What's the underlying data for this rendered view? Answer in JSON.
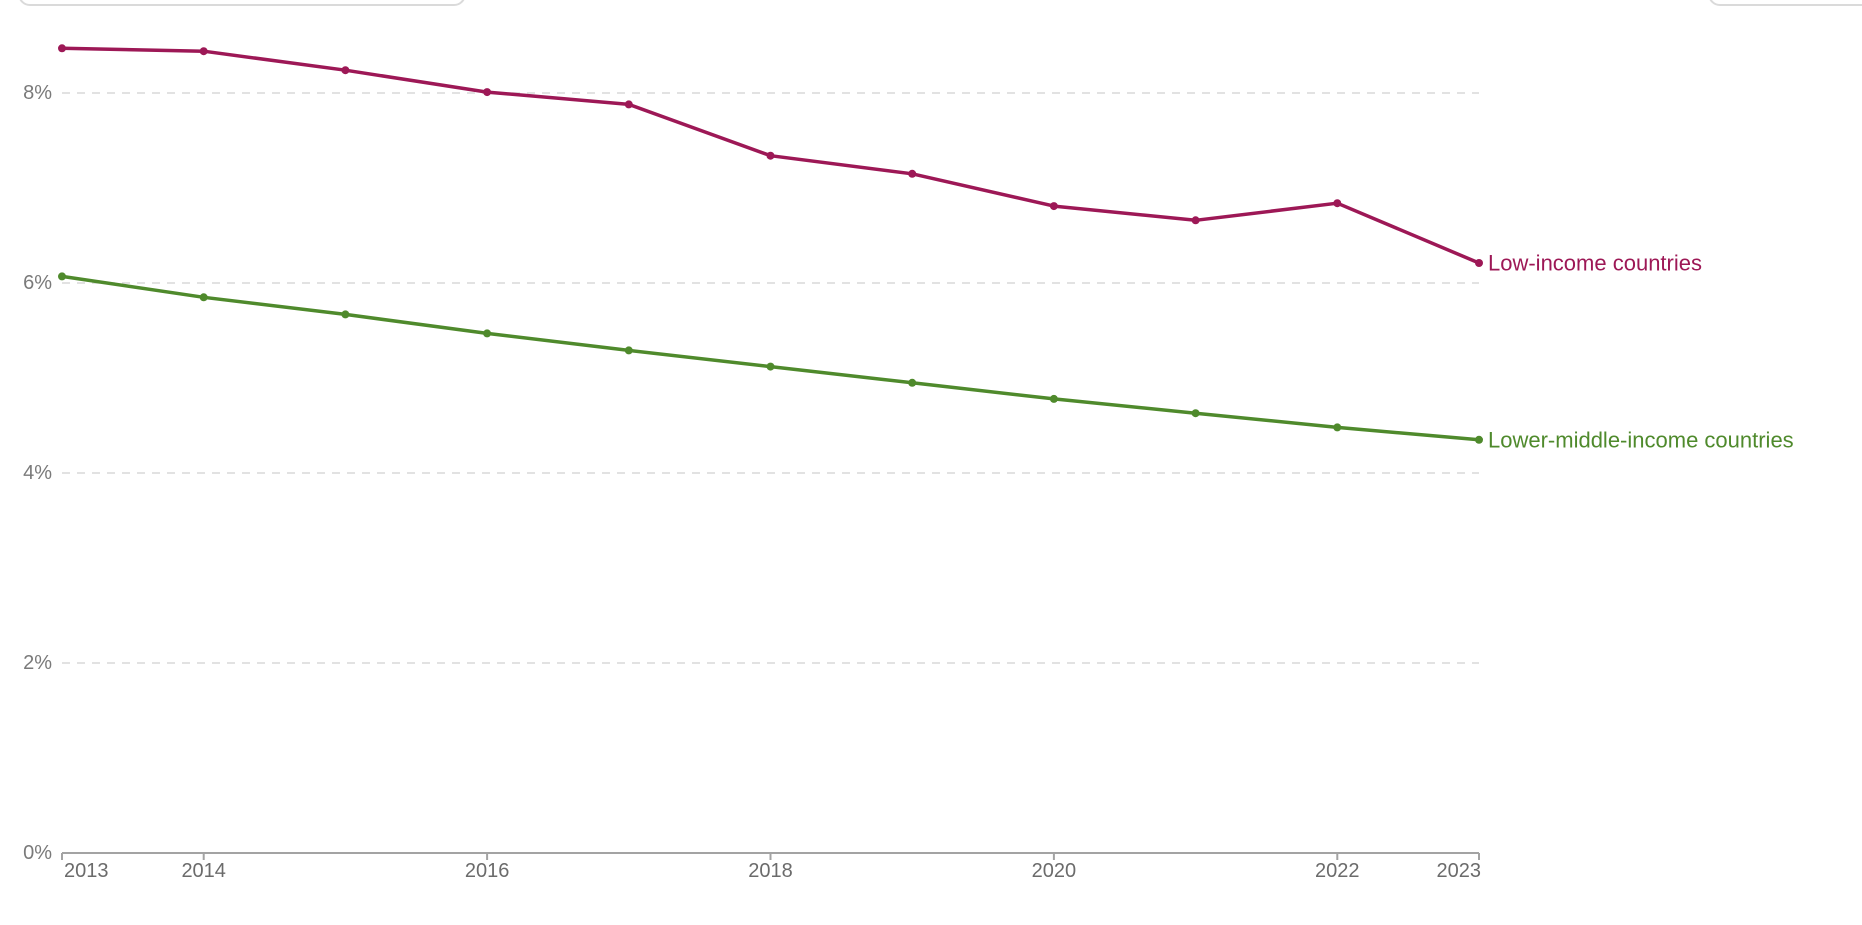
{
  "page": {
    "background": "#FFFFFF",
    "top_left_partial_control": {
      "type": "cut-off-rounded-control",
      "text": ""
    },
    "top_right_partial_control": {
      "type": "cut-off-rounded-control",
      "text": ""
    }
  },
  "chart_data": {
    "type": "line",
    "title": "",
    "xlabel": "",
    "ylabel": "",
    "x": [
      2013,
      2014,
      2015,
      2016,
      2017,
      2018,
      2019,
      2020,
      2021,
      2022,
      2023
    ],
    "series": [
      {
        "name": "Low-income countries",
        "color": "#9D1856",
        "values": [
          8.47,
          8.44,
          8.24,
          8.01,
          7.88,
          7.34,
          7.15,
          6.81,
          6.66,
          6.84,
          6.21
        ]
      },
      {
        "name": "Lower-middle-income countries",
        "color": "#4F8A2C",
        "values": [
          6.07,
          5.85,
          5.67,
          5.47,
          5.29,
          5.12,
          4.95,
          4.78,
          4.63,
          4.48,
          4.35
        ]
      }
    ],
    "xlim": [
      2013,
      2023
    ],
    "ylim": [
      0,
      9
    ],
    "xticks": {
      "values": [
        2013,
        2014,
        2016,
        2018,
        2020,
        2022,
        2023
      ],
      "labels": [
        "2013",
        "2014",
        "2016",
        "2018",
        "2020",
        "2022",
        "2023"
      ]
    },
    "yticks": {
      "values": [
        0,
        2,
        4,
        6,
        8
      ],
      "labels": [
        "0%",
        "2%",
        "4%",
        "6%",
        "8%"
      ]
    },
    "grid": "horizontal-dashed",
    "legend_position": "end-of-line-labels",
    "markers": true,
    "styles": {
      "gridline_color": "#D9D9D9",
      "axis_color": "#A3A3A3",
      "ytick_label_color": "#7A7A7A",
      "xtick_label_color": "#6B6B6B",
      "tick_label_font_px": 20,
      "series_label_font_px": 22
    }
  }
}
